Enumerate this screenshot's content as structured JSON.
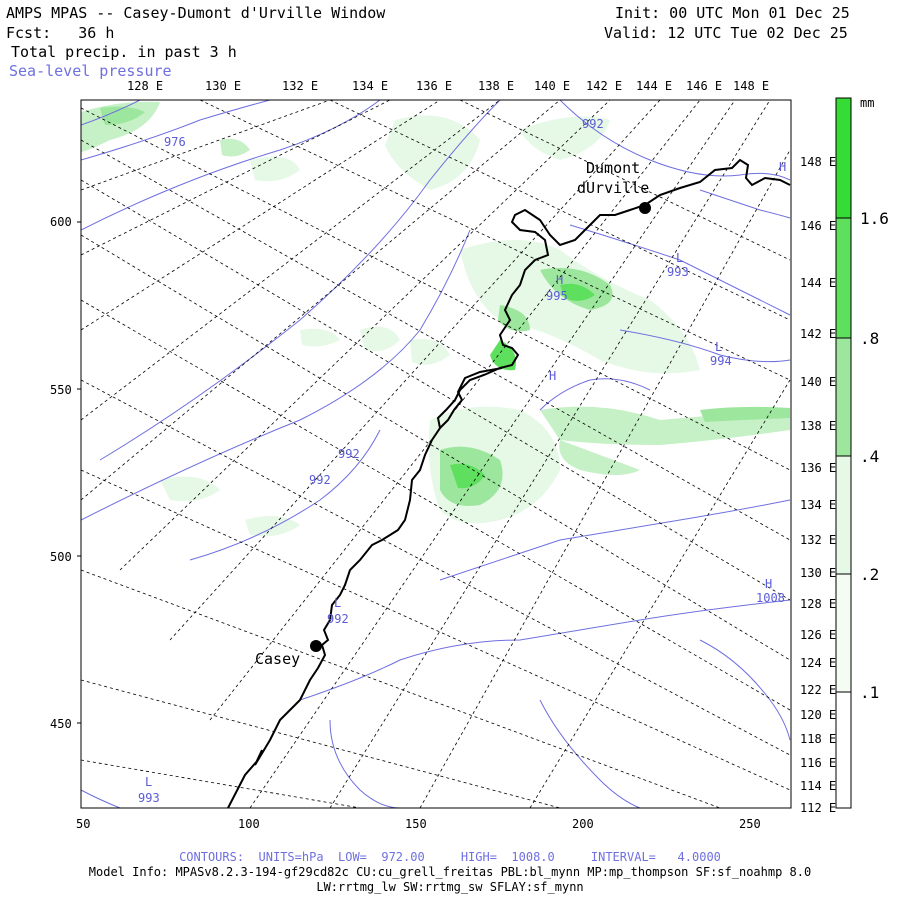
{
  "header": {
    "title": "AMPS MPAS -- Casey-Dumont d'Urville Window",
    "forecast": "Fcst:   36 h",
    "field": "Total precip. in past 3 h",
    "overlay": "Sea-level pressure",
    "init": "Init: 00 UTC Mon 01 Dec 25",
    "valid": "Valid: 12 UTC Tue 02 Dec 25"
  },
  "colors": {
    "coast": "#000000",
    "contour": "#6f6fe0",
    "grid": "#000000",
    "precip_levels": [
      "#ffffff",
      "#e6f8e6",
      "#c6f0c6",
      "#9de69d",
      "#5ee05e",
      "#35dc35"
    ]
  },
  "map": {
    "top_lon_labels": [
      "128 E",
      "130 E",
      "132 E",
      "134 E",
      "136 E",
      "138 E",
      "140 E",
      "142 E",
      "144 E",
      "146 E",
      "148 E"
    ],
    "left_y_labels": [
      "600",
      "550",
      "500",
      "450"
    ],
    "bottom_x_labels": [
      "50",
      "100",
      "150",
      "200",
      "250"
    ],
    "right_lon_labels": [
      "148 E",
      "146 E",
      "144 E",
      "142 E",
      "140 E",
      "138 E",
      "136 E",
      "134 E",
      "132 E",
      "130 E",
      "128 E",
      "126 E",
      "124 E",
      "122 E",
      "120 E",
      "118 E",
      "116 E",
      "114 E",
      "112 E"
    ],
    "stations": [
      {
        "name": "Casey"
      },
      {
        "name_line1": "Dumont",
        "name_line2": "dUrville"
      }
    ],
    "pressure_labels": [
      "976",
      "992",
      "995",
      "993",
      "994",
      "992",
      "992",
      "992",
      "993",
      "1008"
    ],
    "extrema_labels": [
      "H",
      "L",
      "H",
      "L",
      "L",
      "H",
      "L",
      "H"
    ]
  },
  "colorbar": {
    "unit": "mm",
    "labels": [
      "1.6",
      ".8",
      ".4",
      ".2",
      ".1"
    ]
  },
  "footer": {
    "contours": "CONTOURS:  UNITS=hPa  LOW=  972.00     HIGH=  1008.0     INTERVAL=   4.0000",
    "model_info": "Model Info: MPASv8.2.3-194-gf29cd82c CU:cu_grell_freitas PBL:bl_mynn MP:mp_thompson SF:sf_noahmp 8.0",
    "model_info2": "LW:rrtmg_lw SW:rrtmg_sw SFLAY:sf_mynn"
  }
}
